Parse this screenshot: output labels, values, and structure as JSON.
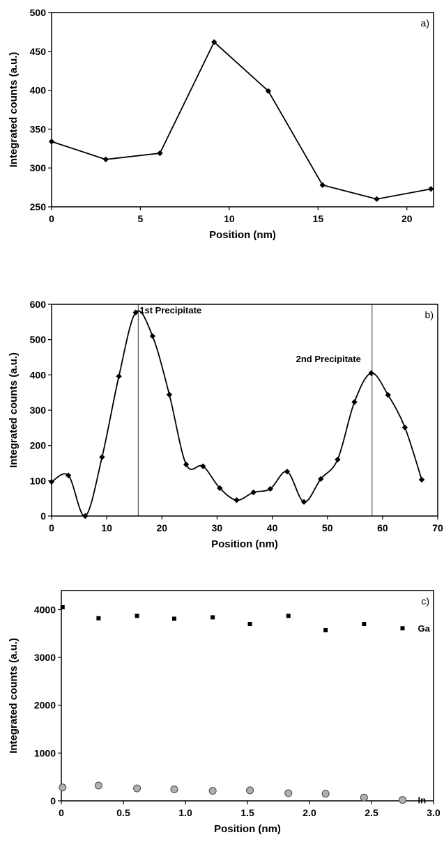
{
  "chart_data": [
    {
      "type": "line",
      "panel_label": "a)",
      "xlabel": "Position (nm)",
      "ylabel": "Integrated counts (a.u.)",
      "xlim": [
        0,
        21.5
      ],
      "ylim": [
        250,
        500
      ],
      "xticks": [
        0,
        5,
        10,
        15,
        20
      ],
      "xtick_labels": [
        "0",
        "5",
        "10",
        "15",
        "20"
      ],
      "yticks": [
        250,
        300,
        350,
        400,
        450,
        500
      ],
      "ytick_labels": [
        "250",
        "300",
        "350",
        "400",
        "450",
        "500"
      ],
      "grid": false,
      "series": [
        {
          "x": [
            0,
            3.05,
            6.1,
            9.15,
            12.2,
            15.25,
            18.3,
            21.35
          ],
          "y": [
            334,
            311,
            319,
            462,
            399,
            278,
            260,
            273
          ]
        }
      ]
    },
    {
      "type": "line",
      "panel_label": "b)",
      "xlabel": "Position (nm)",
      "ylabel": "Integrated counts (a.u.)",
      "xlim": [
        0,
        70
      ],
      "ylim": [
        0,
        600
      ],
      "xticks": [
        0,
        10,
        20,
        30,
        40,
        50,
        60,
        70
      ],
      "xtick_labels": [
        "0",
        "10",
        "20",
        "30",
        "40",
        "50",
        "60",
        "70"
      ],
      "yticks": [
        0,
        100,
        200,
        300,
        400,
        500,
        600
      ],
      "ytick_labels": [
        "0",
        "100",
        "200",
        "300",
        "400",
        "500",
        "600"
      ],
      "grid": false,
      "smooth": true,
      "series": [
        {
          "x": [
            0,
            3.05,
            6.1,
            9.15,
            12.2,
            15.25,
            18.3,
            21.35,
            24.4,
            27.45,
            30.5,
            33.55,
            36.6,
            39.65,
            42.7,
            45.75,
            48.8,
            51.85,
            54.9,
            57.95,
            61.0,
            64.05,
            67.1
          ],
          "y": [
            97,
            115,
            0,
            167,
            396,
            577,
            510,
            344,
            146,
            141,
            79,
            45,
            67,
            77,
            126,
            40,
            105,
            160,
            323,
            405,
            343,
            251,
            103
          ]
        }
      ],
      "annotations": [
        {
          "text": "1st Precipitate",
          "x": 15.7
        },
        {
          "text": "2nd Precipitate",
          "x": 58.1
        }
      ]
    },
    {
      "type": "scatter",
      "panel_label": "c)",
      "xlabel": "Position (nm)",
      "ylabel": "Integrated counts (a.u.)",
      "xlim": [
        0,
        3.0
      ],
      "ylim": [
        0,
        4400
      ],
      "xticks": [
        0,
        0.5,
        1.0,
        1.5,
        2.0,
        2.5,
        3.0
      ],
      "xtick_labels": [
        "0",
        "0.5",
        "1.0",
        "1.5",
        "2.0",
        "2.5",
        "3.0"
      ],
      "yticks": [
        0,
        1000,
        2000,
        3000,
        4000
      ],
      "ytick_labels": [
        "0",
        "1000",
        "2000",
        "3000",
        "4000"
      ],
      "grid": false,
      "series": [
        {
          "name": "Ga",
          "marker": "square",
          "x": [
            0.01,
            0.3,
            0.61,
            0.91,
            1.22,
            1.52,
            1.83,
            2.13,
            2.44,
            2.75
          ],
          "y": [
            4050,
            3820,
            3870,
            3810,
            3840,
            3700,
            3870,
            3570,
            3700,
            3610
          ]
        },
        {
          "name": "In",
          "marker": "circle",
          "x": [
            0.01,
            0.3,
            0.61,
            0.91,
            1.22,
            1.52,
            1.83,
            2.13,
            2.44,
            2.75
          ],
          "y": [
            280,
            320,
            260,
            240,
            210,
            220,
            160,
            150,
            70,
            20
          ]
        }
      ]
    }
  ]
}
